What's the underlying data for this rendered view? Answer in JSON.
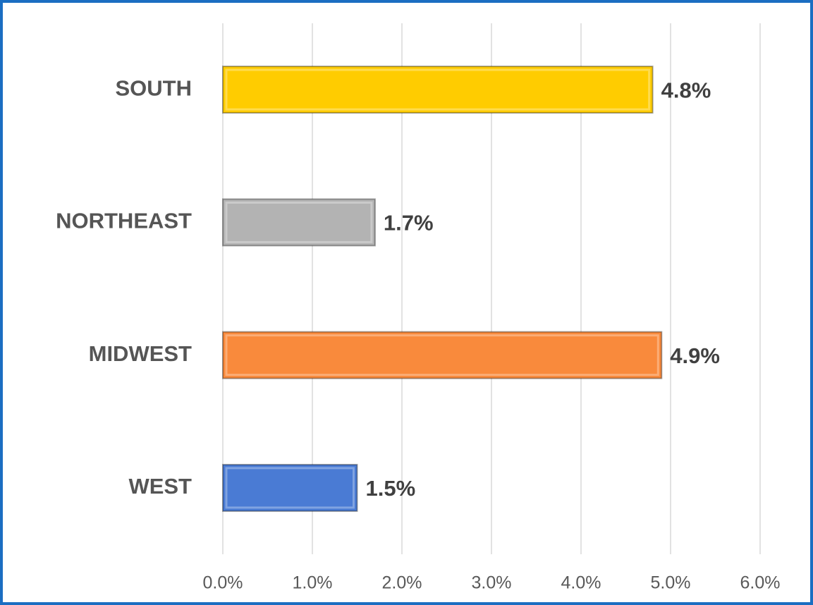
{
  "chart_data": {
    "type": "bar",
    "orientation": "horizontal",
    "categories": [
      "SOUTH",
      "NORTHEAST",
      "MIDWEST",
      "WEST"
    ],
    "values": [
      4.8,
      1.7,
      4.9,
      1.5
    ],
    "value_labels": [
      "4.8%",
      "1.7%",
      "4.9%",
      "1.5%"
    ],
    "colors": [
      "#ffcc00",
      "#b3b3b3",
      "#f98a3c",
      "#4a7bd4"
    ],
    "xlim": [
      0,
      6
    ],
    "xticks": [
      {
        "value": 0,
        "label": "0.0%"
      },
      {
        "value": 1,
        "label": "1.0%"
      },
      {
        "value": 2,
        "label": "2.0%"
      },
      {
        "value": 3,
        "label": "3.0%"
      },
      {
        "value": 4,
        "label": "4.0%"
      },
      {
        "value": 5,
        "label": "5.0%"
      },
      {
        "value": 6,
        "label": "6.0%"
      }
    ],
    "grid": true
  }
}
